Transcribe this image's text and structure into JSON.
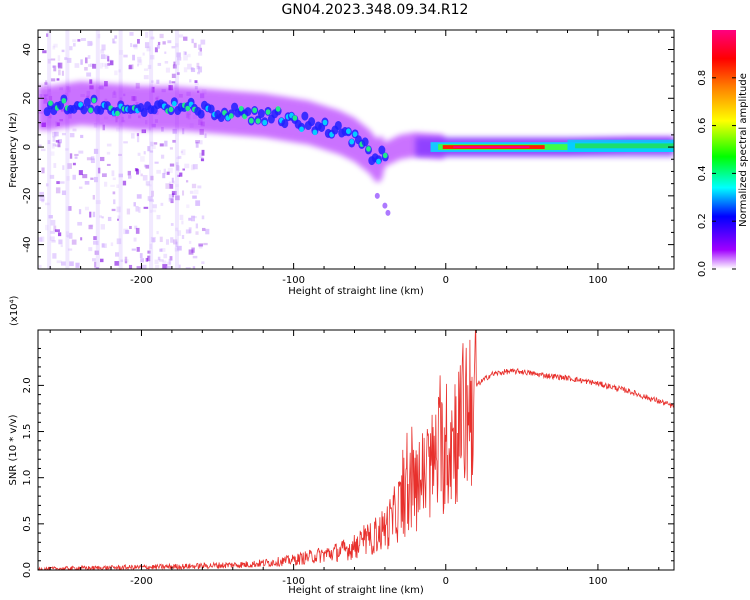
{
  "title": "GN04.2023.348.09.34.R12",
  "chart_data": [
    {
      "type": "heatmap",
      "name": "spectrogram",
      "xlabel": "Height of straight line (km)",
      "ylabel": "Frequency (Hz)",
      "xlim": [
        -268,
        150
      ],
      "ylim": [
        -50,
        48
      ],
      "xticks": [
        -200,
        -100,
        0,
        100
      ],
      "xtick_labels": [
        "-200",
        "-100",
        "0",
        "100"
      ],
      "yticks": [
        -40,
        -20,
        0,
        20,
        40
      ],
      "ytick_labels": [
        "-40",
        "-20",
        "0",
        "20",
        "40"
      ],
      "ridge": {
        "x": [
          -260,
          -240,
          -220,
          -200,
          -180,
          -160,
          -140,
          -120,
          -100,
          -90,
          -80,
          -70,
          -60,
          -50,
          -45,
          -40,
          -30,
          -20,
          -10,
          0,
          40,
          80,
          120,
          150
        ],
        "y": [
          16,
          18,
          17,
          16,
          16,
          15,
          14,
          13,
          11,
          10,
          8,
          6,
          3,
          -2,
          -6,
          -3,
          0,
          1,
          0.5,
          0,
          0,
          0,
          1,
          1
        ]
      },
      "colorbar": {
        "label": "Normalized spectral amplitude",
        "range": [
          0.0,
          1.0
        ],
        "ticks": [
          0.0,
          0.2,
          0.4,
          0.6,
          0.8
        ],
        "tick_labels": [
          "0.0",
          "0.2",
          "0.4",
          "0.6",
          "0.8"
        ],
        "colors": [
          "#ffffff",
          "#a000ff",
          "#0000ff",
          "#00ffff",
          "#00ff00",
          "#ffff00",
          "#ff8000",
          "#ff0000",
          "#ff0080"
        ]
      }
    },
    {
      "type": "line",
      "name": "snr",
      "xlabel": "Height of straight line (km)",
      "ylabel": "SNR (10 * v/v)",
      "multiplier_label": "(x10⁴)",
      "xlim": [
        -268,
        150
      ],
      "ylim": [
        0,
        2.6
      ],
      "xticks": [
        -200,
        -100,
        0,
        100
      ],
      "xtick_labels": [
        "-200",
        "-100",
        "0",
        "100"
      ],
      "yticks": [
        0,
        0.5,
        1.0,
        1.5,
        2.0
      ],
      "ytick_labels": [
        "0.0",
        "0.5",
        "1.0",
        "1.5",
        "2.0"
      ],
      "color": "#e8302c",
      "x": [
        -268,
        -240,
        -200,
        -170,
        -150,
        -130,
        -110,
        -100,
        -90,
        -80,
        -70,
        -60,
        -50,
        -40,
        -35,
        -30,
        -25,
        -20,
        -15,
        -10,
        -5,
        0,
        5,
        10,
        15,
        20,
        30,
        40,
        50,
        60,
        70,
        80,
        90,
        100,
        110,
        120,
        130,
        140,
        150
      ],
      "values": [
        0.01,
        0.02,
        0.03,
        0.04,
        0.05,
        0.06,
        0.09,
        0.11,
        0.14,
        0.17,
        0.2,
        0.25,
        0.33,
        0.45,
        0.55,
        0.7,
        0.8,
        0.9,
        1.0,
        1.1,
        1.25,
        1.3,
        1.45,
        1.55,
        1.8,
        2.0,
        2.12,
        2.15,
        2.15,
        2.12,
        2.1,
        2.08,
        2.05,
        2.02,
        1.98,
        1.94,
        1.88,
        1.83,
        1.77
      ]
    }
  ]
}
